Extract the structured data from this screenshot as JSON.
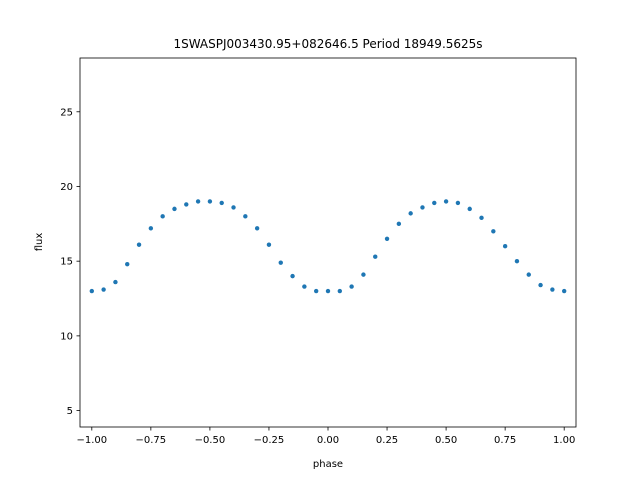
{
  "chart_data": {
    "type": "scatter",
    "title": "1SWASPJ003430.95+082646.5 Period 18949.5625s",
    "xlabel": "phase",
    "ylabel": "flux",
    "xlim": [
      -1.05,
      1.05
    ],
    "ylim": [
      3.9,
      28.6
    ],
    "xticks": [
      -1.0,
      -0.75,
      -0.5,
      -0.25,
      0.0,
      0.25,
      0.5,
      0.75,
      1.0
    ],
    "xtick_labels": [
      "−1.00",
      "−0.75",
      "−0.50",
      "−0.25",
      "0.00",
      "0.25",
      "0.50",
      "0.75",
      "1.00"
    ],
    "yticks": [
      5,
      10,
      15,
      20,
      25
    ],
    "ytick_labels": [
      "5",
      "10",
      "15",
      "20",
      "25"
    ],
    "grid": false,
    "marker_color": "#1f77b4",
    "series": [
      {
        "x": [
          -1.0,
          -0.95,
          -0.9,
          -0.85,
          -0.8,
          -0.75,
          -0.7,
          -0.65,
          -0.6,
          -0.55,
          -0.5,
          -0.45,
          -0.4,
          -0.35,
          -0.3,
          -0.25,
          -0.2,
          -0.15,
          -0.1,
          -0.05,
          0.0,
          0.05,
          0.1,
          0.15,
          0.2,
          0.25,
          0.3,
          0.35,
          0.4,
          0.45,
          0.5,
          0.55,
          0.6,
          0.65,
          0.7,
          0.75,
          0.8,
          0.85,
          0.9,
          0.95,
          1.0
        ],
        "y": [
          13.0,
          13.1,
          13.6,
          14.8,
          16.1,
          17.2,
          18.0,
          18.5,
          18.8,
          19.0,
          19.0,
          18.9,
          18.6,
          18.0,
          17.2,
          16.1,
          14.9,
          14.0,
          13.3,
          13.0,
          13.0,
          13.0,
          13.3,
          14.1,
          15.3,
          16.5,
          17.5,
          18.2,
          18.6,
          18.9,
          19.0,
          18.9,
          18.5,
          17.9,
          17.0,
          16.0,
          15.0,
          14.1,
          13.4,
          13.1,
          13.0
        ]
      }
    ]
  }
}
